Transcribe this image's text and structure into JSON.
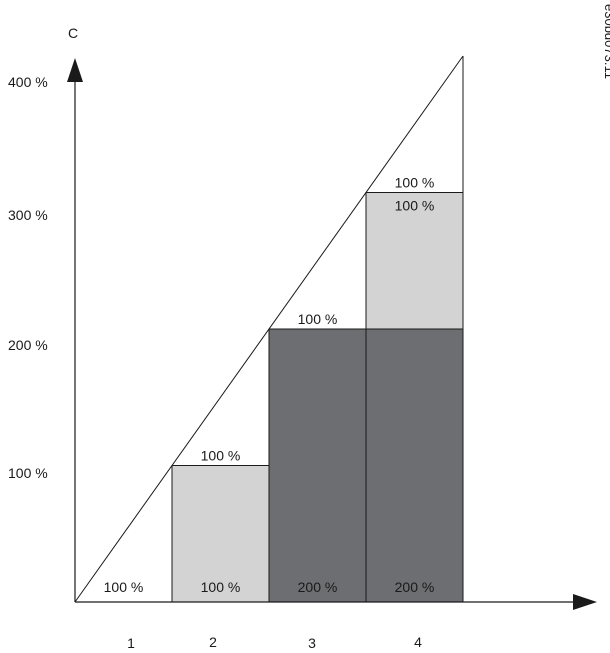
{
  "diagram_code": "e30bd073.11",
  "y_axis_label": "C",
  "y_ticks": [
    "400 %",
    "300 %",
    "200 %",
    "100 %"
  ],
  "x_ticks": [
    "1",
    "2",
    "3",
    "4"
  ],
  "colors": {
    "light": "#d3d3d4",
    "dark": "#6d6e72",
    "line": "#1a1a1a"
  },
  "columns": [
    {
      "x": "1",
      "segments": [],
      "top_label": "",
      "bottom_label": "100 %"
    },
    {
      "x": "2",
      "segments": [
        {
          "from": 0,
          "to": 100,
          "shade": "light",
          "label": ""
        }
      ],
      "top_label": "100 %",
      "bottom_label": "100 %"
    },
    {
      "x": "3",
      "segments": [
        {
          "from": 0,
          "to": 200,
          "shade": "dark",
          "label": ""
        }
      ],
      "top_label": "100 %",
      "bottom_label": "200 %"
    },
    {
      "x": "4",
      "segments": [
        {
          "from": 0,
          "to": 200,
          "shade": "dark",
          "label": ""
        },
        {
          "from": 200,
          "to": 300,
          "shade": "light",
          "label": "100 %"
        }
      ],
      "top_label": "100 %",
      "bottom_label": "200 %"
    }
  ],
  "diagonal": {
    "from": 0,
    "to": 400
  }
}
